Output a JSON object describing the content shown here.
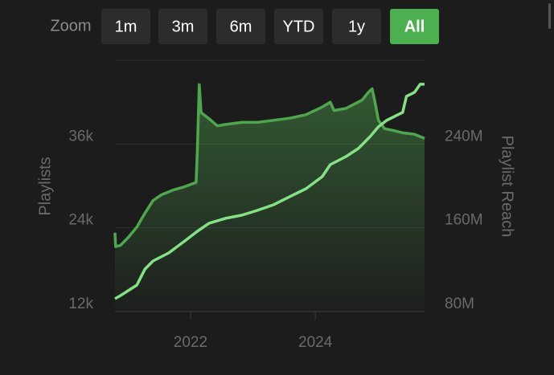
{
  "zoom": {
    "label": "Zoom",
    "buttons": [
      "1m",
      "3m",
      "6m",
      "YTD",
      "1y",
      "All"
    ],
    "selected": 5
  },
  "chart_data": {
    "type": "line",
    "ylabel": "Playlists",
    "y2label": "Playlist Reach",
    "xlim": [
      2020.79,
      2025.75
    ],
    "xticks": [
      2022,
      2024
    ],
    "ylim": [
      12000,
      48000
    ],
    "yticks": [
      {
        "value": 12000,
        "label": "12k"
      },
      {
        "value": 24000,
        "label": "24k"
      },
      {
        "value": 36000,
        "label": "36k"
      }
    ],
    "y2lim": [
      80000000,
      320000000
    ],
    "y2ticks": [
      {
        "value": 80000000,
        "label": "80M"
      },
      {
        "value": 160000000,
        "label": "160M"
      },
      {
        "value": 240000000,
        "label": "240M"
      }
    ],
    "grid": true,
    "series": [
      {
        "color": "#4fa64f",
        "area": true,
        "x": [
          2020.79,
          2020.8,
          2020.88,
          2021.01,
          2021.14,
          2021.27,
          2021.4,
          2021.53,
          2021.72,
          2021.91,
          2022.09,
          2022.11,
          2022.14,
          2022.17,
          2022.3,
          2022.43,
          2022.56,
          2022.82,
          2023.07,
          2023.33,
          2023.59,
          2023.85,
          2024.11,
          2024.24,
          2024.3,
          2024.49,
          2024.75,
          2024.85,
          2024.91,
          2024.95,
          2025.01,
          2025.11,
          2025.27,
          2025.4,
          2025.59,
          2025.75
        ],
        "values": [
          23300,
          21300,
          21500,
          22700,
          24100,
          26100,
          27900,
          28700,
          29400,
          29900,
          30500,
          35300,
          44500,
          40500,
          39600,
          38600,
          38800,
          39100,
          39100,
          39400,
          39700,
          40200,
          41300,
          42000,
          40800,
          41100,
          42300,
          43400,
          43900,
          42300,
          39400,
          38200,
          37900,
          37600,
          37400,
          36800
        ]
      },
      {
        "color": "#86e086",
        "axis": "y2",
        "x": [
          2020.79,
          2020.88,
          2021.14,
          2021.27,
          2021.4,
          2021.65,
          2021.91,
          2022.11,
          2022.3,
          2022.56,
          2022.82,
          2023.07,
          2023.33,
          2023.59,
          2023.85,
          2024.11,
          2024.24,
          2024.49,
          2024.69,
          2024.88,
          2025.01,
          2025.14,
          2025.4,
          2025.46,
          2025.59,
          2025.68,
          2025.75
        ],
        "values": [
          92300000,
          95300000,
          105300000,
          120600000,
          128300000,
          136000000,
          147500000,
          156700000,
          164400000,
          169000000,
          172000000,
          176600000,
          182000000,
          189700000,
          197300000,
          208800000,
          220300000,
          228000000,
          235700000,
          247200000,
          256400000,
          262500000,
          270200000,
          285600000,
          289400000,
          297100000,
          297100000
        ]
      }
    ]
  }
}
